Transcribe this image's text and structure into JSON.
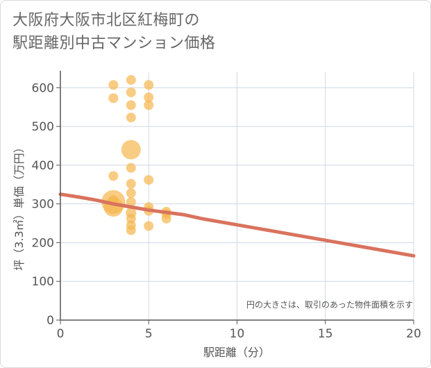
{
  "title_lines": [
    "大阪府大阪市北区紅梅町の",
    "駅距離別中古マンション価格"
  ],
  "colors": {
    "bubble": "#f5b64f",
    "trend": "#d9735e",
    "grid": "#cdd8e3",
    "axis": "#555555"
  },
  "chart_data": {
    "type": "scatter",
    "title": "大阪府大阪市北区紅梅町の駅距離別中古マンション価格",
    "xlabel": "駅距離（分）",
    "ylabel": "坪（3.3㎡）単価（万円）",
    "xlim": [
      0,
      20
    ],
    "ylim": [
      0,
      640
    ],
    "xticks": [
      0,
      5,
      10,
      15,
      20
    ],
    "yticks": [
      0,
      100,
      200,
      300,
      400,
      500,
      600
    ],
    "grid": true,
    "annotation": "円の大きさは、取引のあった物件面積を示す",
    "points": [
      {
        "x": 3,
        "y": 607,
        "size": 1
      },
      {
        "x": 3,
        "y": 573,
        "size": 1
      },
      {
        "x": 3,
        "y": 372,
        "size": 1
      },
      {
        "x": 3,
        "y": 310,
        "size": 1
      },
      {
        "x": 3,
        "y": 305,
        "size": 6
      },
      {
        "x": 3,
        "y": 292,
        "size": 4
      },
      {
        "x": 4,
        "y": 620,
        "size": 1
      },
      {
        "x": 4,
        "y": 588,
        "size": 1
      },
      {
        "x": 4,
        "y": 555,
        "size": 1
      },
      {
        "x": 4,
        "y": 523,
        "size": 1
      },
      {
        "x": 4,
        "y": 440,
        "size": 4
      },
      {
        "x": 4,
        "y": 393,
        "size": 1
      },
      {
        "x": 4,
        "y": 352,
        "size": 1
      },
      {
        "x": 4,
        "y": 328,
        "size": 1
      },
      {
        "x": 4,
        "y": 305,
        "size": 1
      },
      {
        "x": 4,
        "y": 277,
        "size": 1.2
      },
      {
        "x": 4,
        "y": 262,
        "size": 1
      },
      {
        "x": 4,
        "y": 245,
        "size": 1
      },
      {
        "x": 4,
        "y": 232,
        "size": 1
      },
      {
        "x": 5,
        "y": 607,
        "size": 1
      },
      {
        "x": 5,
        "y": 575,
        "size": 1
      },
      {
        "x": 5,
        "y": 555,
        "size": 1
      },
      {
        "x": 5,
        "y": 362,
        "size": 1
      },
      {
        "x": 5,
        "y": 292,
        "size": 1
      },
      {
        "x": 5,
        "y": 282,
        "size": 1
      },
      {
        "x": 5,
        "y": 243,
        "size": 1
      },
      {
        "x": 6,
        "y": 280,
        "size": 1
      },
      {
        "x": 6,
        "y": 274,
        "size": 1
      },
      {
        "x": 6,
        "y": 262,
        "size": 1
      }
    ],
    "trend_line": {
      "x": [
        0,
        1,
        2,
        3,
        4,
        5,
        6,
        7,
        8,
        10,
        12,
        15,
        20
      ],
      "y": [
        325,
        318,
        310,
        300,
        292,
        284,
        278,
        272,
        262,
        246,
        230,
        206,
        166
      ]
    }
  }
}
